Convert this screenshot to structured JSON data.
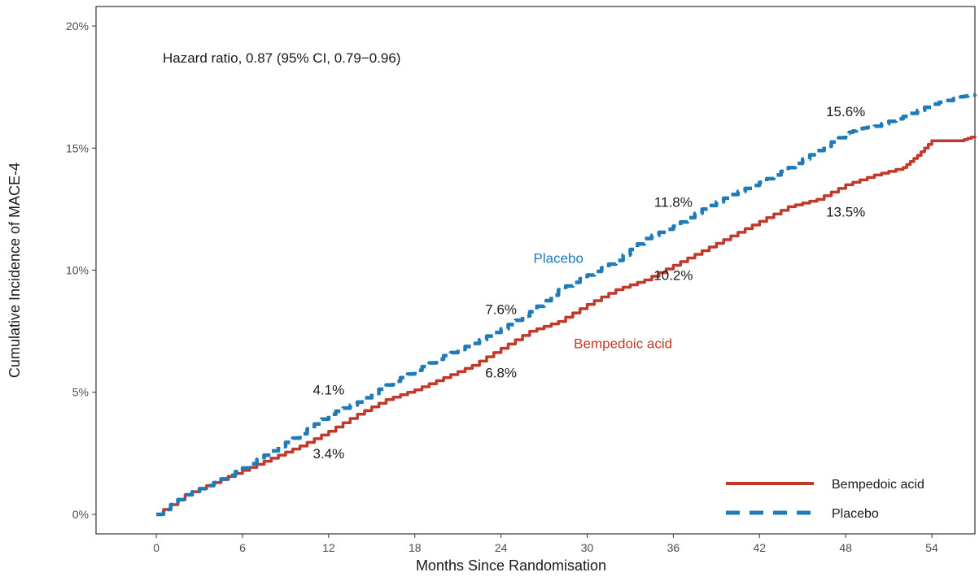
{
  "chart_data": {
    "type": "line",
    "xlabel": "Months Since Randomisation",
    "ylabel": "Cumulative Incidence of  MACE-4",
    "xlim": [
      -4.2,
      57
    ],
    "ylim": [
      -0.8,
      20.8
    ],
    "x_ticks": [
      0,
      6,
      12,
      18,
      24,
      30,
      36,
      42,
      48,
      54
    ],
    "x_tick_labels": [
      "0",
      "6",
      "12",
      "18",
      "24",
      "30",
      "36",
      "42",
      "48",
      "54"
    ],
    "y_ticks": [
      0,
      5,
      10,
      15,
      20
    ],
    "y_tick_labels": [
      "0%",
      "5%",
      "10%",
      "15%",
      "20%"
    ],
    "grid": false,
    "legend_position": "bottom-right",
    "hazard_ratio_text": "Hazard ratio, 0.87 (95% CI, 0.79−0.96)",
    "series": [
      {
        "name": "Bempedoic acid",
        "color": "#c0392b",
        "line_style": "solid",
        "x": [
          0,
          2,
          4,
          6,
          8,
          10,
          12,
          14,
          16,
          18,
          20,
          22,
          24,
          26,
          28,
          30,
          32,
          34,
          36,
          38,
          40,
          42,
          44,
          46,
          48,
          50,
          52,
          53,
          54,
          56,
          57
        ],
        "y": [
          0,
          0.8,
          1.3,
          1.8,
          2.3,
          2.8,
          3.4,
          4.1,
          4.7,
          5.1,
          5.6,
          6.1,
          6.8,
          7.5,
          7.9,
          8.6,
          9.2,
          9.6,
          10.2,
          10.8,
          11.4,
          12.0,
          12.6,
          12.9,
          13.5,
          13.9,
          14.2,
          14.7,
          15.3,
          15.3,
          15.5
        ]
      },
      {
        "name": "Placebo",
        "color": "#1f7ab8",
        "line_style": "dashed",
        "x": [
          0,
          2,
          4,
          6,
          8,
          10,
          12,
          14,
          16,
          18,
          20,
          22,
          24,
          26,
          28,
          30,
          32,
          34,
          36,
          38,
          40,
          42,
          44,
          46,
          48,
          49,
          50,
          52,
          54,
          56,
          57
        ],
        "y": [
          0,
          0.8,
          1.3,
          1.9,
          2.6,
          3.3,
          4.1,
          4.6,
          5.3,
          5.9,
          6.5,
          7.0,
          7.6,
          8.3,
          9.2,
          9.8,
          10.4,
          11.3,
          11.8,
          12.5,
          13.1,
          13.6,
          14.2,
          14.9,
          15.6,
          15.8,
          15.9,
          16.3,
          16.8,
          17.1,
          17.2
        ]
      }
    ],
    "point_labels": [
      {
        "text": "3.4%",
        "x": 12,
        "y": 2.3,
        "anchor": "start-offset"
      },
      {
        "text": "4.1%",
        "x": 12,
        "y": 4.9
      },
      {
        "text": "6.8%",
        "x": 24,
        "y": 5.6
      },
      {
        "text": "7.6%",
        "x": 24,
        "y": 8.2
      },
      {
        "text": "10.2%",
        "x": 36,
        "y": 9.6
      },
      {
        "text": "11.8%",
        "x": 36,
        "y": 12.6
      },
      {
        "text": "13.5%",
        "x": 48,
        "y": 12.2
      },
      {
        "text": "15.6%",
        "x": 48,
        "y": 16.3
      }
    ],
    "series_labels": [
      {
        "text": "Placebo",
        "x": 28,
        "y": 10.3,
        "color": "#1f7ab8"
      },
      {
        "text": "Bempedoic acid",
        "x": 32.5,
        "y": 6.8,
        "color": "#c0392b"
      }
    ]
  }
}
